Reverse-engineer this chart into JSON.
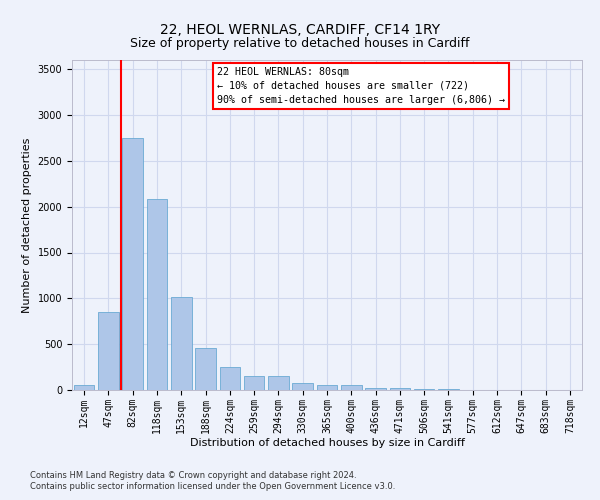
{
  "title": "22, HEOL WERNLAS, CARDIFF, CF14 1RY",
  "subtitle": "Size of property relative to detached houses in Cardiff",
  "xlabel": "Distribution of detached houses by size in Cardiff",
  "ylabel": "Number of detached properties",
  "categories": [
    "12sqm",
    "47sqm",
    "82sqm",
    "118sqm",
    "153sqm",
    "188sqm",
    "224sqm",
    "259sqm",
    "294sqm",
    "330sqm",
    "365sqm",
    "400sqm",
    "436sqm",
    "471sqm",
    "506sqm",
    "541sqm",
    "577sqm",
    "612sqm",
    "647sqm",
    "683sqm",
    "718sqm"
  ],
  "values": [
    60,
    850,
    2750,
    2080,
    1010,
    460,
    250,
    155,
    155,
    75,
    60,
    55,
    25,
    20,
    15,
    10,
    5,
    3,
    2,
    2,
    1
  ],
  "bar_color": "#aec6e8",
  "bar_edge_color": "#6aaad4",
  "vline_x_index": 2,
  "vline_color": "red",
  "annotation_text": "22 HEOL WERNLAS: 80sqm\n← 10% of detached houses are smaller (722)\n90% of semi-detached houses are larger (6,806) →",
  "annotation_box_color": "white",
  "annotation_box_edge": "red",
  "ylim": [
    0,
    3600
  ],
  "yticks": [
    0,
    500,
    1000,
    1500,
    2000,
    2500,
    3000,
    3500
  ],
  "footer1": "Contains HM Land Registry data © Crown copyright and database right 2024.",
  "footer2": "Contains public sector information licensed under the Open Government Licence v3.0.",
  "bg_color": "#eef2fb",
  "grid_color": "#d0d8ee",
  "title_fontsize": 10,
  "subtitle_fontsize": 9,
  "tick_fontsize": 7,
  "label_fontsize": 8,
  "footer_fontsize": 6
}
